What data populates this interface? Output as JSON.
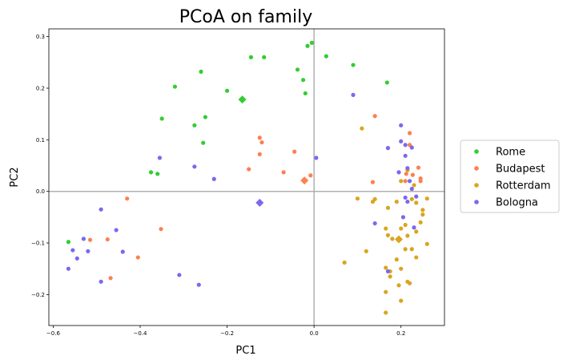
{
  "chart_data": {
    "type": "scatter",
    "title": "PCoA on family",
    "xlabel": "PC1",
    "ylabel": "PC2",
    "xlim": [
      -0.61,
      0.3
    ],
    "ylim": [
      -0.26,
      0.315
    ],
    "xticks": [
      -0.6,
      -0.4,
      -0.2,
      0.0,
      0.2
    ],
    "yticks": [
      -0.2,
      -0.1,
      0.0,
      0.1,
      0.2,
      0.3
    ],
    "xtick_labels": [
      "−0.6",
      "−0.4",
      "−0.2",
      "0.0",
      "0.2"
    ],
    "ytick_labels": [
      "−0.2",
      "−0.1",
      "0.0",
      "0.1",
      "0.2",
      "0.3"
    ],
    "reference_lines": {
      "x": 0.0,
      "y": 0.0
    },
    "grid": false,
    "legend_position": "right-center",
    "series": [
      {
        "name": "Rome",
        "color": "#32cd32",
        "centroid": [
          -0.165,
          0.178
        ],
        "points": [
          [
            -0.145,
            0.26
          ],
          [
            -0.115,
            0.26
          ],
          [
            -0.005,
            0.288
          ],
          [
            -0.015,
            0.282
          ],
          [
            0.028,
            0.262
          ],
          [
            -0.038,
            0.236
          ],
          [
            -0.26,
            0.232
          ],
          [
            -0.025,
            0.216
          ],
          [
            0.09,
            0.245
          ],
          [
            0.168,
            0.211
          ],
          [
            -0.32,
            0.203
          ],
          [
            -0.2,
            0.195
          ],
          [
            -0.02,
            0.19
          ],
          [
            -0.35,
            0.141
          ],
          [
            -0.25,
            0.144
          ],
          [
            -0.275,
            0.128
          ],
          [
            -0.255,
            0.094
          ],
          [
            -0.375,
            0.037
          ],
          [
            -0.36,
            0.034
          ],
          [
            -0.565,
            -0.098
          ]
        ]
      },
      {
        "name": "Budapest",
        "color": "#ff7f50",
        "centroid": [
          -0.022,
          0.021
        ],
        "points": [
          [
            -0.125,
            0.104
          ],
          [
            -0.12,
            0.095
          ],
          [
            -0.045,
            0.077
          ],
          [
            -0.125,
            0.072
          ],
          [
            -0.15,
            0.043
          ],
          [
            -0.07,
            0.037
          ],
          [
            -0.008,
            0.031
          ],
          [
            0.14,
            0.146
          ],
          [
            0.22,
            0.113
          ],
          [
            0.22,
            0.09
          ],
          [
            0.24,
            0.046
          ],
          [
            0.227,
            0.032
          ],
          [
            0.212,
            0.034
          ],
          [
            0.245,
            0.025
          ],
          [
            0.245,
            0.02
          ],
          [
            0.135,
            0.018
          ],
          [
            0.21,
            0.02
          ],
          [
            -0.43,
            -0.014
          ],
          [
            -0.352,
            -0.073
          ],
          [
            -0.475,
            -0.093
          ],
          [
            -0.515,
            -0.094
          ],
          [
            -0.405,
            -0.128
          ],
          [
            -0.468,
            -0.168
          ]
        ]
      },
      {
        "name": "Rotterdam",
        "color": "#daa520",
        "centroid": [
          0.195,
          -0.093
        ],
        "points": [
          [
            0.11,
            0.122
          ],
          [
            0.215,
            0.041
          ],
          [
            0.2,
            0.02
          ],
          [
            0.23,
            0.012
          ],
          [
            0.26,
            -0.014
          ],
          [
            0.1,
            -0.014
          ],
          [
            0.14,
            -0.015
          ],
          [
            0.135,
            -0.02
          ],
          [
            0.19,
            -0.02
          ],
          [
            0.225,
            -0.015
          ],
          [
            0.235,
            -0.022
          ],
          [
            0.25,
            -0.036
          ],
          [
            0.25,
            -0.045
          ],
          [
            0.17,
            -0.032
          ],
          [
            0.245,
            -0.06
          ],
          [
            0.21,
            -0.065
          ],
          [
            0.2,
            -0.072
          ],
          [
            0.165,
            -0.072
          ],
          [
            0.235,
            -0.078
          ],
          [
            0.17,
            -0.085
          ],
          [
            0.215,
            -0.086
          ],
          [
            0.18,
            -0.092
          ],
          [
            0.26,
            -0.102
          ],
          [
            0.21,
            -0.112
          ],
          [
            0.225,
            -0.112
          ],
          [
            0.12,
            -0.116
          ],
          [
            0.235,
            -0.128
          ],
          [
            0.07,
            -0.138
          ],
          [
            0.19,
            -0.132
          ],
          [
            0.165,
            -0.148
          ],
          [
            0.2,
            -0.15
          ],
          [
            0.175,
            -0.155
          ],
          [
            0.175,
            -0.165
          ],
          [
            0.215,
            -0.175
          ],
          [
            0.22,
            -0.178
          ],
          [
            0.195,
            -0.182
          ],
          [
            0.165,
            -0.195
          ],
          [
            0.2,
            -0.212
          ],
          [
            0.165,
            -0.235
          ]
        ]
      },
      {
        "name": "Bologna",
        "color": "#7b68ee",
        "centroid": [
          -0.125,
          -0.022
        ],
        "points": [
          [
            0.09,
            0.187
          ],
          [
            0.2,
            0.128
          ],
          [
            0.2,
            0.097
          ],
          [
            0.17,
            0.084
          ],
          [
            0.21,
            0.09
          ],
          [
            0.225,
            0.085
          ],
          [
            0.21,
            0.069
          ],
          [
            0.005,
            0.065
          ],
          [
            -0.355,
            0.065
          ],
          [
            -0.275,
            0.048
          ],
          [
            -0.23,
            0.024
          ],
          [
            0.195,
            0.037
          ],
          [
            0.215,
            0.045
          ],
          [
            0.22,
            0.02
          ],
          [
            0.225,
            0.005
          ],
          [
            0.235,
            -0.01
          ],
          [
            0.21,
            -0.012
          ],
          [
            0.215,
            -0.02
          ],
          [
            0.205,
            -0.05
          ],
          [
            0.14,
            -0.062
          ],
          [
            0.23,
            -0.07
          ],
          [
            -0.49,
            -0.035
          ],
          [
            -0.455,
            -0.075
          ],
          [
            -0.53,
            -0.092
          ],
          [
            -0.555,
            -0.114
          ],
          [
            -0.52,
            -0.116
          ],
          [
            -0.44,
            -0.117
          ],
          [
            -0.545,
            -0.13
          ],
          [
            -0.565,
            -0.15
          ],
          [
            0.17,
            -0.155
          ],
          [
            -0.31,
            -0.162
          ],
          [
            -0.49,
            -0.175
          ],
          [
            -0.265,
            -0.181
          ]
        ]
      }
    ]
  }
}
